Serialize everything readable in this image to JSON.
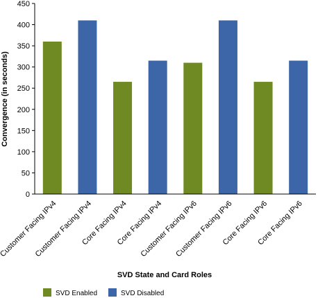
{
  "chart_data": {
    "type": "bar",
    "categories": [
      "Customer Facing IPv4",
      "Customer Facing IPv4",
      "Core Facing IPv4",
      "Core Facing IPv4",
      "Customer Facing IPv6",
      "Customer Facing IPv6",
      "Core Facing IPv6",
      "Core Facing IPv6"
    ],
    "values": [
      360,
      410,
      265,
      315,
      310,
      410,
      265,
      315
    ],
    "bar_series": [
      0,
      1,
      0,
      1,
      0,
      1,
      0,
      1
    ],
    "series": [
      {
        "name": "SVD Enabled",
        "color": "#6f8a23"
      },
      {
        "name": "SVD Disabled",
        "color": "#3d66a8"
      }
    ],
    "title": "",
    "xlabel": "SVD State and Card Roles",
    "ylabel": "Convergence (in seconds)",
    "ylim": [
      0,
      450
    ],
    "yticks": [
      0,
      50,
      100,
      150,
      200,
      250,
      300,
      350,
      400,
      450
    ],
    "grid": false,
    "legend_position": "bottom"
  }
}
